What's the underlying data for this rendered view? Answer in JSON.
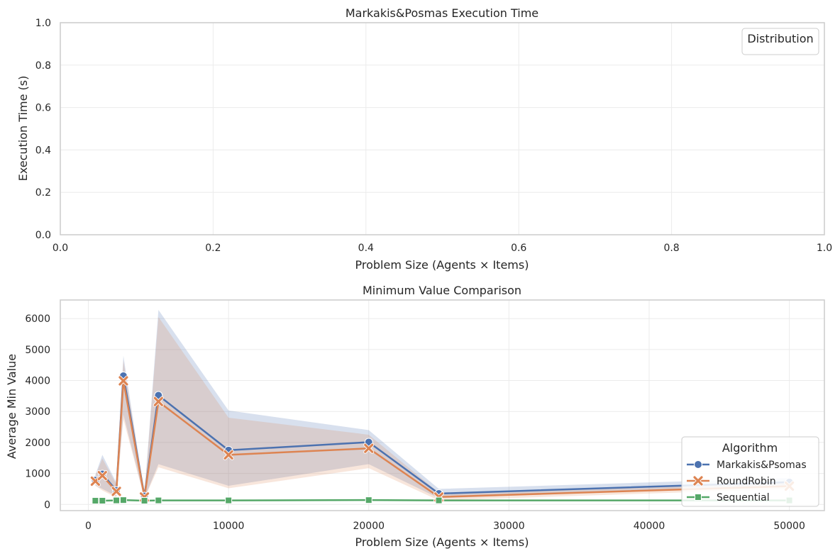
{
  "chart_data": [
    {
      "type": "line",
      "title": "Markakis&Posmas Execution Time",
      "xlabel": "Problem Size (Agents × Items)",
      "ylabel": "Execution Time (s)",
      "xlim": [
        0.0,
        1.0
      ],
      "ylim": [
        0.0,
        1.0
      ],
      "xticks": [
        "0.0",
        "0.2",
        "0.4",
        "0.6",
        "0.8",
        "1.0"
      ],
      "yticks": [
        "0.0",
        "0.2",
        "0.4",
        "0.6",
        "0.8",
        "1.0"
      ],
      "grid": true,
      "legend": {
        "title": "Distribution",
        "placement": "top-right",
        "entries": []
      },
      "series": []
    },
    {
      "type": "line",
      "title": "Minimum Value Comparison",
      "xlabel": "Problem Size (Agents × Items)",
      "ylabel": "Average Min Value",
      "xlim": [
        -2000,
        52500
      ],
      "ylim": [
        -200,
        6600
      ],
      "xticks": [
        0,
        10000,
        20000,
        30000,
        40000,
        50000
      ],
      "yticks": [
        0,
        1000,
        2000,
        3000,
        4000,
        5000,
        6000
      ],
      "grid": true,
      "legend": {
        "title": "Algorithm",
        "placement": "lower-right"
      },
      "x": [
        500,
        1000,
        2000,
        2500,
        4000,
        5000,
        10000,
        20000,
        25000,
        50000
      ],
      "series": [
        {
          "name": "Markakis&Psomas",
          "color": "#4c72b0",
          "marker": "circle",
          "values": [
            780,
            980,
            450,
            4150,
            270,
            3520,
            1750,
            2010,
            350,
            720
          ],
          "ci_lower": [
            620,
            500,
            270,
            2900,
            200,
            1300,
            600,
            1300,
            200,
            600
          ],
          "ci_upper": [
            950,
            1600,
            700,
            4800,
            350,
            6280,
            3030,
            2400,
            500,
            850
          ]
        },
        {
          "name": "RoundRobin",
          "color": "#dd8452",
          "marker": "x",
          "values": [
            750,
            930,
            420,
            3990,
            240,
            3320,
            1600,
            1810,
            240,
            590
          ],
          "ci_lower": [
            600,
            450,
            220,
            2750,
            180,
            1200,
            520,
            1170,
            130,
            500
          ],
          "ci_upper": [
            920,
            1480,
            650,
            4650,
            320,
            6050,
            2800,
            2250,
            380,
            730
          ]
        },
        {
          "name": "Sequential",
          "color": "#55a868",
          "marker": "square",
          "values": [
            120,
            120,
            130,
            140,
            120,
            130,
            130,
            140,
            130,
            130
          ]
        }
      ]
    }
  ]
}
